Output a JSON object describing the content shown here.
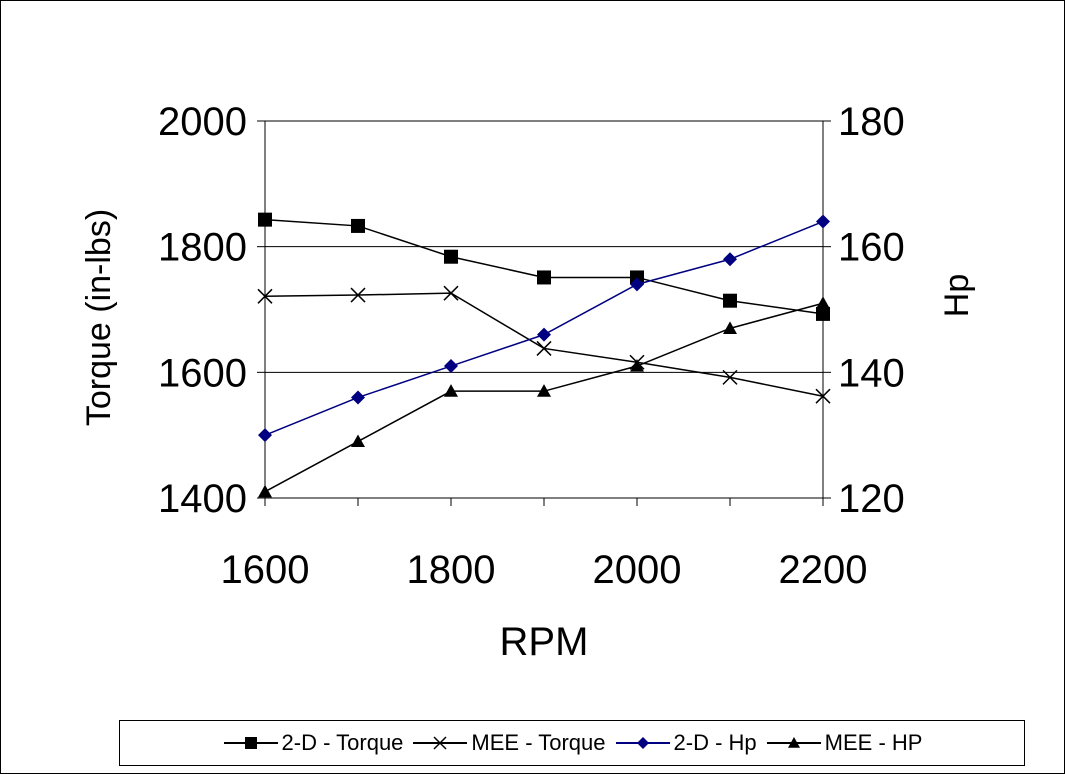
{
  "chart_data": {
    "type": "line",
    "xlabel": "RPM",
    "ylabel_left": "Torque (in-lbs)",
    "ylabel_right": "Hp",
    "x": [
      1600,
      1700,
      1800,
      1900,
      2000,
      2100,
      2200
    ],
    "xlim": [
      1600,
      2200
    ],
    "x_ticks": [
      "1600",
      "1800",
      "2000",
      "2200"
    ],
    "ylim_left": [
      1400,
      2000
    ],
    "y_ticks_left": [
      "1400",
      "1600",
      "1800",
      "2000"
    ],
    "ylim_right": [
      120,
      180
    ],
    "y_ticks_right": [
      "120",
      "140",
      "160",
      "180"
    ],
    "grid": true,
    "legend_position": "bottom",
    "series": [
      {
        "name": "2-D - Torque",
        "axis": "left",
        "marker": "square",
        "color": "#000000",
        "values": [
          1843,
          1833,
          1784,
          1751,
          1751,
          1714,
          1693
        ]
      },
      {
        "name": "MEE - Torque",
        "axis": "left",
        "marker": "x",
        "color": "#000000",
        "values": [
          1721,
          1723,
          1726,
          1638,
          1616,
          1592,
          1562
        ]
      },
      {
        "name": "2-D - Hp",
        "axis": "right",
        "marker": "diamond",
        "color": "#000080",
        "values": [
          130,
          136,
          141,
          146,
          154,
          158,
          164
        ]
      },
      {
        "name": "MEE - HP",
        "axis": "right",
        "marker": "triangle",
        "color": "#000000",
        "values": [
          121,
          129,
          137,
          137,
          141,
          147,
          151
        ]
      }
    ]
  }
}
